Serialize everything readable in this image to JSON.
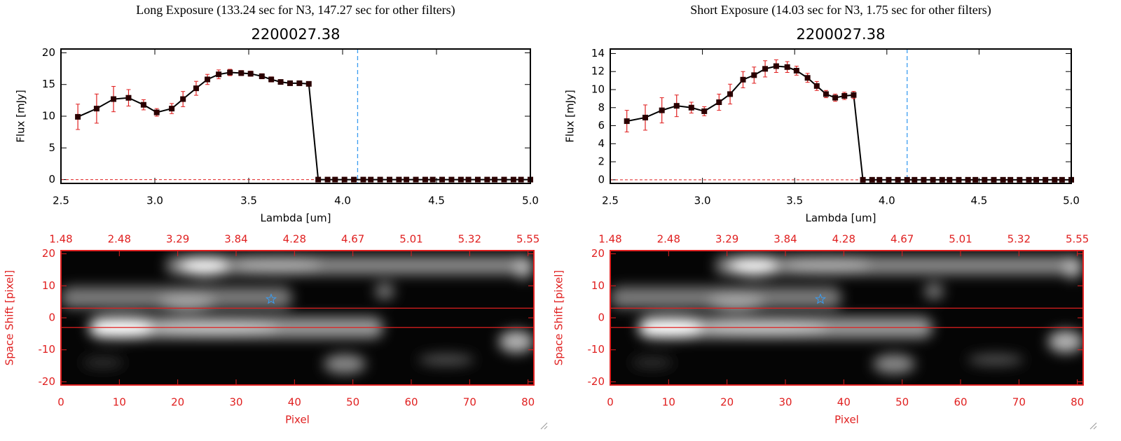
{
  "chart_data": [
    {
      "type": "line",
      "suptitle": "Long Exposure (133.24 sec for N3, 147.27 sec for other filters)",
      "title": "2200027.38",
      "xlabel": "Lambda [um]",
      "ylabel": "Flux [mJy]",
      "x": [
        2.59,
        2.69,
        2.78,
        2.86,
        2.94,
        3.01,
        3.09,
        3.15,
        3.22,
        3.28,
        3.34,
        3.4,
        3.46,
        3.51,
        3.57,
        3.62,
        3.67,
        3.72,
        3.77,
        3.82,
        3.87,
        3.92,
        3.96,
        4.01,
        4.06,
        4.11,
        4.15,
        4.2,
        4.25,
        4.3,
        4.34,
        4.39,
        4.44,
        4.48,
        4.53,
        4.58,
        4.63,
        4.67,
        4.72,
        4.77,
        4.81,
        4.86,
        4.91,
        4.95,
        5.0
      ],
      "values": [
        9.9,
        11.2,
        12.7,
        12.9,
        11.8,
        10.6,
        11.2,
        12.7,
        14.4,
        15.8,
        16.6,
        16.9,
        16.8,
        16.7,
        16.3,
        15.8,
        15.4,
        15.2,
        15.2,
        15.1,
        0,
        0,
        0,
        0,
        0,
        0,
        0,
        0,
        0,
        0,
        0,
        0,
        0,
        0,
        0,
        0,
        0,
        0,
        0,
        0,
        0,
        0,
        0,
        0,
        0
      ],
      "errors": [
        2.0,
        2.3,
        2.0,
        1.3,
        0.8,
        0.6,
        0.8,
        1.2,
        1.1,
        0.8,
        0.7,
        0.5,
        0.4,
        0.4,
        0.4,
        0.4,
        0.3,
        0.3,
        0.3,
        0.3,
        0,
        0,
        0,
        0,
        0,
        0,
        0,
        0,
        0,
        0,
        0,
        0,
        0,
        0,
        0,
        0,
        0,
        0,
        0,
        0,
        0,
        0,
        0,
        0,
        0
      ],
      "color": "#000000",
      "marker_color": "#2a0000",
      "error_color": "#e02020",
      "vline": 4.08,
      "vline_color": "#3a9cf0",
      "hline": 0,
      "hline_color": "#e02020",
      "xlim": [
        2.5,
        5.0
      ],
      "xticks": [
        2.5,
        {
          "value": 3,
          "label": "3.0"
        },
        3.5,
        {
          "value": 4,
          "label": "4.0"
        },
        4.5,
        {
          "value": 5,
          "label": "5.0"
        }
      ],
      "ylim": [
        -0.6,
        20.6
      ],
      "yticks": [
        0,
        5,
        10,
        15,
        20
      ]
    },
    {
      "type": "image",
      "xlabel": "Pixel",
      "ylabel": "Space Shift [pixel]",
      "color": "#e02020",
      "xlim": [
        0,
        81
      ],
      "xticks": [
        0,
        10,
        20,
        30,
        40,
        50,
        60,
        70,
        80
      ],
      "x2ticks": [
        {
          "value": 0,
          "label": "1.48"
        },
        {
          "value": 10,
          "label": "2.48"
        },
        {
          "value": 20,
          "label": "3.29"
        },
        {
          "value": 30,
          "label": "3.84"
        },
        {
          "value": 40,
          "label": "4.28"
        },
        {
          "value": 50,
          "label": "4.67"
        },
        {
          "value": 60,
          "label": "5.01"
        },
        {
          "value": 70,
          "label": "5.32"
        },
        {
          "value": 80,
          "label": "5.55"
        }
      ],
      "ylim": [
        -21,
        21
      ],
      "yticks": [
        -20,
        -10,
        0,
        10,
        20
      ],
      "hlines": [
        3,
        -3
      ],
      "star": {
        "x": 36,
        "y": 5.8
      },
      "star_color": "#3a9cf0"
    },
    {
      "type": "line",
      "suptitle": "Short Exposure (14.03 sec for N3, 1.75 sec for other filters)",
      "title": "2200027.38",
      "xlabel": "Lambda [um]",
      "ylabel": "Flux [mJy]",
      "x": [
        2.59,
        2.69,
        2.78,
        2.86,
        2.94,
        3.01,
        3.09,
        3.15,
        3.22,
        3.28,
        3.34,
        3.4,
        3.46,
        3.51,
        3.57,
        3.62,
        3.67,
        3.72,
        3.77,
        3.82,
        3.87,
        3.92,
        3.96,
        4.01,
        4.06,
        4.11,
        4.15,
        4.2,
        4.25,
        4.3,
        4.34,
        4.39,
        4.44,
        4.48,
        4.53,
        4.58,
        4.63,
        4.67,
        4.72,
        4.77,
        4.81,
        4.86,
        4.91,
        4.95,
        5.0
      ],
      "values": [
        6.5,
        6.9,
        7.7,
        8.2,
        8.0,
        7.6,
        8.6,
        9.5,
        11.1,
        11.6,
        12.3,
        12.6,
        12.5,
        12.1,
        11.3,
        10.4,
        9.5,
        9.1,
        9.3,
        9.4,
        0,
        0,
        0,
        0,
        0,
        0,
        0,
        0,
        0,
        0,
        0,
        0,
        0,
        0,
        0,
        0,
        0,
        0,
        0,
        0,
        0,
        0,
        0,
        0,
        0
      ],
      "errors": [
        1.2,
        1.4,
        1.4,
        1.2,
        0.6,
        0.5,
        0.9,
        1.1,
        0.9,
        0.9,
        0.9,
        0.7,
        0.6,
        0.5,
        0.5,
        0.5,
        0.4,
        0.4,
        0.4,
        0.4,
        0,
        0,
        0,
        0,
        0,
        0,
        0,
        0,
        0,
        0,
        0,
        0,
        0,
        0,
        0,
        0,
        0,
        0,
        0,
        0,
        0,
        0,
        0,
        0,
        0
      ],
      "color": "#000000",
      "marker_color": "#2a0000",
      "error_color": "#e02020",
      "vline": 4.11,
      "vline_color": "#3a9cf0",
      "hline": 0,
      "hline_color": "#e02020",
      "xlim": [
        2.5,
        5.0
      ],
      "xticks": [
        2.5,
        {
          "value": 3,
          "label": "3.0"
        },
        3.5,
        {
          "value": 4,
          "label": "4.0"
        },
        4.5,
        {
          "value": 5,
          "label": "5.0"
        }
      ],
      "ylim": [
        -0.4,
        14.5
      ],
      "yticks": [
        0,
        2,
        4,
        6,
        8,
        10,
        12,
        14
      ]
    },
    {
      "type": "image",
      "xlabel": "Pixel",
      "ylabel": "Space Shift [pixel]",
      "color": "#e02020",
      "xlim": [
        0,
        81
      ],
      "xticks": [
        0,
        10,
        20,
        30,
        40,
        50,
        60,
        70,
        80
      ],
      "x2ticks": [
        {
          "value": 0,
          "label": "1.48"
        },
        {
          "value": 10,
          "label": "2.48"
        },
        {
          "value": 20,
          "label": "3.29"
        },
        {
          "value": 30,
          "label": "3.84"
        },
        {
          "value": 40,
          "label": "4.28"
        },
        {
          "value": 50,
          "label": "4.67"
        },
        {
          "value": 60,
          "label": "5.01"
        },
        {
          "value": 70,
          "label": "5.32"
        },
        {
          "value": 80,
          "label": "5.55"
        }
      ],
      "ylim": [
        -21,
        21
      ],
      "yticks": [
        -20,
        -10,
        0,
        10,
        20
      ],
      "hlines": [
        3,
        -3
      ],
      "star": {
        "x": 36,
        "y": 5.8
      },
      "star_color": "#3a9cf0"
    }
  ]
}
